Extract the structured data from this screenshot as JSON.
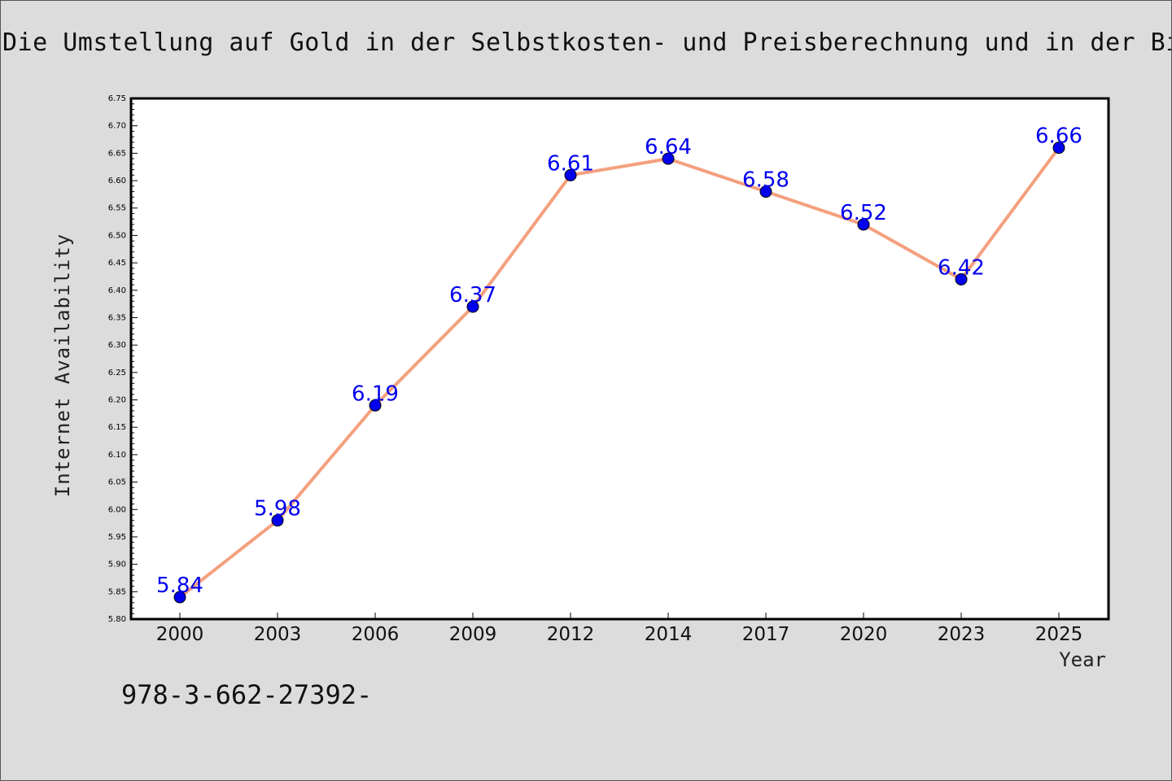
{
  "chart_data": {
    "type": "line",
    "title": "Die Umstellung auf Gold in der Selbstkosten- und Preisberechnung und in der Bila",
    "xlabel": "Year",
    "ylabel": "Internet Availability",
    "categories": [
      "2000",
      "2003",
      "2006",
      "2009",
      "2012",
      "2014",
      "2017",
      "2020",
      "2023",
      "2025"
    ],
    "series": [
      {
        "values": [
          5.84,
          5.98,
          6.19,
          6.37,
          6.61,
          6.64,
          6.58,
          6.52,
          6.42,
          6.66
        ],
        "labels": [
          "5.84",
          "5.98",
          "6.19",
          "6.37",
          "6.61",
          "6.64",
          "6.58",
          "6.52",
          "6.42",
          "6.66"
        ],
        "line_color": "#f4a07e",
        "marker_color": "#0000ee",
        "label_color": "#0000ee"
      }
    ],
    "ylim": [
      5.8,
      6.75
    ],
    "yticks": [
      "5.80",
      "5.85",
      "5.90",
      "5.95",
      "6.00",
      "6.05",
      "6.10",
      "6.15",
      "6.20",
      "6.25",
      "6.30",
      "6.35",
      "6.40",
      "6.45",
      "6.50",
      "6.55",
      "6.60",
      "6.65",
      "6.70",
      "6.75"
    ],
    "grid": false,
    "legend": "none"
  },
  "footnote": "978-3-662-27392-"
}
